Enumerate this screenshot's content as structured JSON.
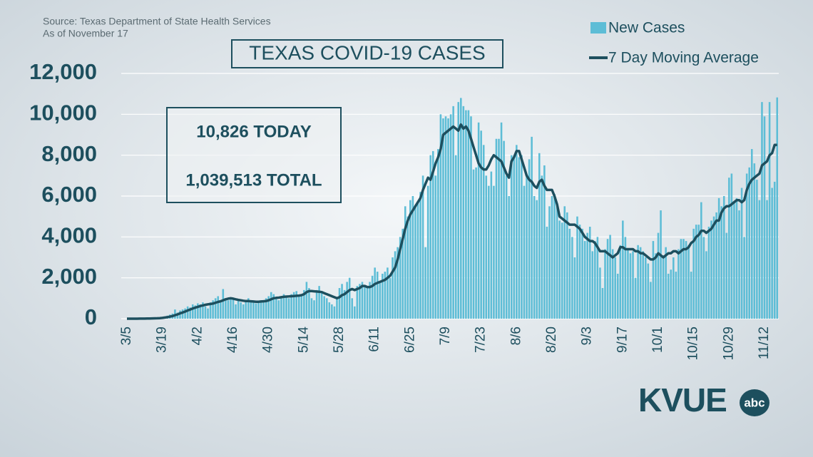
{
  "chart_data": {
    "type": "bar-line",
    "title": "TEXAS COVID-19 CASES",
    "source": "Source: Texas Department of State Health Services",
    "as_of": "As of November 17",
    "stats": [
      "10,826 TODAY",
      "1,039,513 TOTAL"
    ],
    "logo": {
      "text": "KVUE",
      "network": "abc"
    },
    "categories": [
      "3/5",
      null,
      null,
      null,
      null,
      null,
      null,
      null,
      null,
      null,
      null,
      null,
      null,
      null,
      "3/19",
      null,
      null,
      null,
      null,
      null,
      null,
      null,
      null,
      null,
      null,
      null,
      null,
      null,
      "4/2",
      null,
      null,
      null,
      null,
      null,
      null,
      null,
      null,
      null,
      null,
      null,
      null,
      null,
      "4/16",
      null,
      null,
      null,
      null,
      null,
      null,
      null,
      null,
      null,
      null,
      null,
      null,
      null,
      "4/30",
      null,
      null,
      null,
      null,
      null,
      null,
      null,
      null,
      null,
      null,
      null,
      null,
      null,
      "5/14",
      null,
      null,
      null,
      null,
      null,
      null,
      null,
      null,
      null,
      null,
      null,
      null,
      null,
      "5/28",
      null,
      null,
      null,
      null,
      null,
      null,
      null,
      null,
      null,
      null,
      null,
      null,
      null,
      "6/11",
      null,
      null,
      null,
      null,
      null,
      null,
      null,
      null,
      null,
      null,
      null,
      null,
      null,
      "6/25",
      null,
      null,
      null,
      null,
      null,
      null,
      null,
      null,
      null,
      null,
      null,
      null,
      null,
      "7/9",
      null,
      null,
      null,
      null,
      null,
      null,
      null,
      null,
      null,
      null,
      null,
      null,
      null,
      "7/23",
      null,
      null,
      null,
      null,
      null,
      null,
      null,
      null,
      null,
      null,
      null,
      null,
      null,
      "8/6",
      null,
      null,
      null,
      null,
      null,
      null,
      null,
      null,
      null,
      null,
      null,
      null,
      null,
      "8/20",
      null,
      null,
      null,
      null,
      null,
      null,
      null,
      null,
      null,
      null,
      null,
      null,
      null,
      "9/3",
      null,
      null,
      null,
      null,
      null,
      null,
      null,
      null,
      null,
      null,
      null,
      null,
      null,
      "9/17",
      null,
      null,
      null,
      null,
      null,
      null,
      null,
      null,
      null,
      null,
      null,
      null,
      null,
      "10/1",
      null,
      null,
      null,
      null,
      null,
      null,
      null,
      null,
      null,
      null,
      null,
      null,
      null,
      "10/15",
      null,
      null,
      null,
      null,
      null,
      null,
      null,
      null,
      null,
      null,
      null,
      null,
      null,
      "10/29",
      null,
      null,
      null,
      null,
      null,
      null,
      null,
      null,
      null,
      null,
      null,
      null,
      null,
      "11/12",
      null,
      null,
      null,
      null,
      null
    ],
    "series": [
      {
        "name": "New Cases",
        "color": "#5dbdd6",
        "kind": "bar",
        "values": [
          0,
          0,
          0,
          2,
          1,
          3,
          5,
          8,
          10,
          15,
          20,
          25,
          40,
          50,
          80,
          100,
          150,
          200,
          250,
          450,
          300,
          400,
          450,
          500,
          600,
          550,
          700,
          650,
          750,
          700,
          800,
          600,
          500,
          800,
          900,
          1000,
          1100,
          800,
          1450,
          1000,
          900,
          950,
          1000,
          700,
          900,
          800,
          700,
          850,
          1000,
          900,
          800,
          750,
          850,
          900,
          800,
          1000,
          1100,
          1300,
          1200,
          1000,
          900,
          1100,
          1200,
          1100,
          1000,
          1200,
          1300,
          1350,
          1100,
          1200,
          1400,
          1800,
          1500,
          1000,
          900,
          1400,
          1600,
          1300,
          1100,
          1000,
          800,
          700,
          600,
          1000,
          1500,
          1700,
          1400,
          1800,
          2000,
          1000,
          600,
          1600,
          1700,
          1800,
          1600,
          1500,
          1800,
          2100,
          2500,
          2300,
          1800,
          2200,
          2300,
          2500,
          2000,
          3000,
          3300,
          3500,
          4000,
          4400,
          5500,
          5000,
          5800,
          6000,
          5500,
          5700,
          6200,
          7000,
          3500,
          6500,
          8000,
          8200,
          7000,
          8300,
          10000,
          9800,
          9900,
          9800,
          10000,
          10400,
          8000,
          10600,
          10800,
          10400,
          10200,
          10200,
          9900,
          7300,
          7400,
          9600,
          9200,
          8500,
          7000,
          6500,
          7200,
          6500,
          8800,
          8800,
          9600,
          8700,
          7000,
          6000,
          8000,
          8000,
          8500,
          7900,
          8000,
          6500,
          7000,
          7800,
          8900,
          6000,
          5800,
          8100,
          7000,
          7500,
          4500,
          5500,
          6000,
          6100,
          5500,
          4800,
          4700,
          5500,
          5200,
          4400,
          4000,
          3000,
          5000,
          4600,
          4400,
          3800,
          4200,
          4500,
          3300,
          3800,
          4000,
          2500,
          1500,
          3400,
          3900,
          4100,
          3400,
          3000,
          2200,
          3600,
          4800,
          4000,
          3400,
          3200,
          3300,
          2000,
          3600,
          3500,
          3300,
          3000,
          2700,
          1800,
          3800,
          3200,
          4200,
          5300,
          3100,
          3500,
          2200,
          2400,
          3000,
          2300,
          3400,
          3900,
          3900,
          3800,
          3600,
          2300,
          4400,
          4600,
          4600,
          5700,
          4000,
          3300,
          4500,
          4800,
          5000,
          5200,
          5900,
          5500,
          6000,
          4200,
          6900,
          7100,
          5700,
          5900,
          5300,
          6400,
          4000,
          7100,
          7400,
          8300,
          7600,
          6800,
          5800,
          10600,
          9900,
          5800,
          10600,
          6400,
          6700,
          10826
        ]
      },
      {
        "name": "7 Day Moving Average",
        "color": "#1d4f5e",
        "kind": "line",
        "values": [
          0,
          0,
          0,
          0,
          1,
          2,
          3,
          5,
          7,
          10,
          13,
          17,
          22,
          29,
          40,
          55,
          75,
          100,
          130,
          170,
          210,
          260,
          300,
          350,
          400,
          450,
          500,
          540,
          580,
          620,
          650,
          680,
          700,
          720,
          740,
          780,
          820,
          850,
          900,
          950,
          980,
          1000,
          980,
          950,
          920,
          900,
          880,
          860,
          860,
          850,
          840,
          830,
          830,
          840,
          850,
          860,
          900,
          950,
          1000,
          1020,
          1030,
          1050,
          1070,
          1080,
          1090,
          1100,
          1110,
          1120,
          1130,
          1150,
          1200,
          1300,
          1350,
          1350,
          1340,
          1330,
          1320,
          1300,
          1250,
          1200,
          1150,
          1100,
          1050,
          1000,
          1050,
          1150,
          1200,
          1300,
          1400,
          1450,
          1400,
          1450,
          1500,
          1600,
          1600,
          1550,
          1550,
          1600,
          1700,
          1750,
          1800,
          1850,
          1900,
          2000,
          2100,
          2300,
          2500,
          2900,
          3400,
          3900,
          4400,
          4800,
          5100,
          5300,
          5500,
          5700,
          5900,
          6300,
          6600,
          6900,
          6800,
          7200,
          7600,
          7900,
          8300,
          9000,
          9100,
          9200,
          9300,
          9400,
          9300,
          9200,
          9500,
          9300,
          9400,
          9200,
          8800,
          8400,
          8000,
          7600,
          7400,
          7300,
          7300,
          7500,
          7800,
          8000,
          7900,
          7800,
          7700,
          7400,
          7100,
          6900,
          7700,
          7900,
          8200,
          8200,
          7800,
          7400,
          7000,
          6800,
          6700,
          6500,
          6400,
          6700,
          6800,
          6500,
          6300,
          6300,
          6300,
          6000,
          5600,
          5000,
          4900,
          4800,
          4700,
          4600,
          4600,
          4600,
          4500,
          4400,
          4200,
          4000,
          3900,
          3800,
          3800,
          3700,
          3500,
          3300,
          3300,
          3300,
          3200,
          3100,
          3000,
          3100,
          3200,
          3500,
          3500,
          3400,
          3400,
          3400,
          3400,
          3300,
          3300,
          3200,
          3200,
          3100,
          3000,
          2900,
          2900,
          3000,
          3200,
          3100,
          3000,
          3100,
          3200,
          3200,
          3300,
          3300,
          3200,
          3300,
          3400,
          3400,
          3500,
          3700,
          3800,
          4000,
          4100,
          4300,
          4300,
          4200,
          4300,
          4400,
          4600,
          4800,
          4800,
          5200,
          5400,
          5500,
          5500,
          5600,
          5700,
          5800,
          5800,
          5700,
          5800,
          6300,
          6600,
          6800,
          6900,
          7000,
          7100,
          7500,
          7600,
          7700,
          8000,
          8100,
          8500,
          8500
        ]
      }
    ],
    "ylim": [
      0,
      12000
    ],
    "yticks": [
      0,
      {
        "value": 2000,
        "label": "2,000"
      },
      {
        "value": 4000,
        "label": "4,000"
      },
      {
        "value": 6000,
        "label": "6,000"
      },
      {
        "value": 8000,
        "label": "8,000"
      },
      {
        "value": 10000,
        "label": "10,000"
      },
      {
        "value": 12000,
        "label": "12,000"
      }
    ],
    "grid": true,
    "legend": "top-right"
  }
}
